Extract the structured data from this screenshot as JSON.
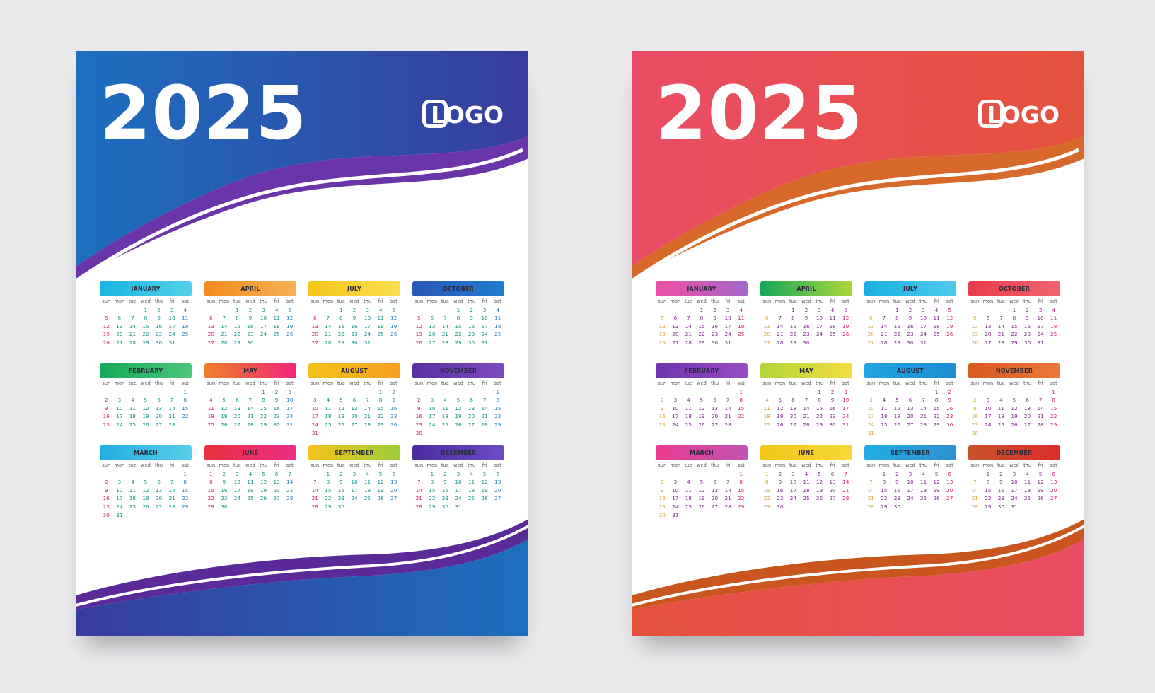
{
  "weekday_labels": [
    "sun",
    "mon",
    "tue",
    "wed",
    "thu",
    "fri",
    "sat"
  ],
  "months": [
    {
      "name": "JANUARY",
      "start": 3,
      "days": 31
    },
    {
      "name": "APRIL",
      "start": 2,
      "days": 30
    },
    {
      "name": "JULY",
      "start": 2,
      "days": 31
    },
    {
      "name": "OCTOBER",
      "start": 3,
      "days": 31
    },
    {
      "name": "FEBRUARY",
      "start": 6,
      "days": 28
    },
    {
      "name": "MAY",
      "start": 4,
      "days": 31
    },
    {
      "name": "AUGUST",
      "start": 5,
      "days": 31
    },
    {
      "name": "NOVEMBER",
      "start": 6,
      "days": 30
    },
    {
      "name": "MARCH",
      "start": 6,
      "days": 31
    },
    {
      "name": "JUNE",
      "start": 0,
      "days": 30
    },
    {
      "name": "SEPTEMBER",
      "start": 1,
      "days": 30
    },
    {
      "name": "DECEMBER",
      "start": 1,
      "days": 31
    }
  ],
  "posters": [
    {
      "id": "blue",
      "year": "2025",
      "logo_text": "LOGO",
      "colors": {
        "top_start": "#1d6fc0",
        "top_end": "#373c9c",
        "wave": "#6a35a8",
        "wave_dark": "#5a2a98"
      },
      "day_colors": {
        "sun": "#d0237a",
        "weekday": "#10918a",
        "sat": "#2a7fb5"
      },
      "month_header_gradients": [
        [
          "#19b5e0",
          "#55d0ea"
        ],
        [
          "#f28a1e",
          "#f7b256"
        ],
        [
          "#f6c619",
          "#f9dd50"
        ],
        [
          "#2a57b8",
          "#1f7dd0"
        ],
        [
          "#15a85a",
          "#4cc77c"
        ],
        [
          "#f0812a",
          "#f0257c"
        ],
        [
          "#f2c318",
          "#f79e22"
        ],
        [
          "#5b2fa2",
          "#7d4bc0"
        ],
        [
          "#21aee0",
          "#58cde9"
        ],
        [
          "#e8303d",
          "#ea2f86"
        ],
        [
          "#f7c31a",
          "#9ccd3a"
        ],
        [
          "#4b2aa0",
          "#6d4bc8"
        ]
      ]
    },
    {
      "id": "red",
      "year": "2025",
      "logo_text": "LOGO",
      "colors": {
        "top_start": "#ea4c66",
        "top_end": "#e4523c",
        "wave": "#d7692a",
        "wave_dark": "#c9561f"
      },
      "day_colors": {
        "sun": "#d9a52a",
        "weekday": "#7d2a8a",
        "sat": "#d0237a"
      },
      "month_header_gradients": [
        [
          "#ec4ea5",
          "#a467c8"
        ],
        [
          "#13a85a",
          "#b0d53c"
        ],
        [
          "#1ab0e0",
          "#4fc9ec"
        ],
        [
          "#ea3b4a",
          "#f06370"
        ],
        [
          "#6c36ab",
          "#9a4ac4"
        ],
        [
          "#b2d53a",
          "#f2dd40"
        ],
        [
          "#21a5e0",
          "#1f8bd2"
        ],
        [
          "#d85a1f",
          "#e9793a"
        ],
        [
          "#ea3a90",
          "#c054b0"
        ],
        [
          "#f2c618",
          "#f5d83a"
        ],
        [
          "#21aee0",
          "#2f8fd0"
        ],
        [
          "#c6532a",
          "#de2c2c"
        ]
      ]
    }
  ]
}
